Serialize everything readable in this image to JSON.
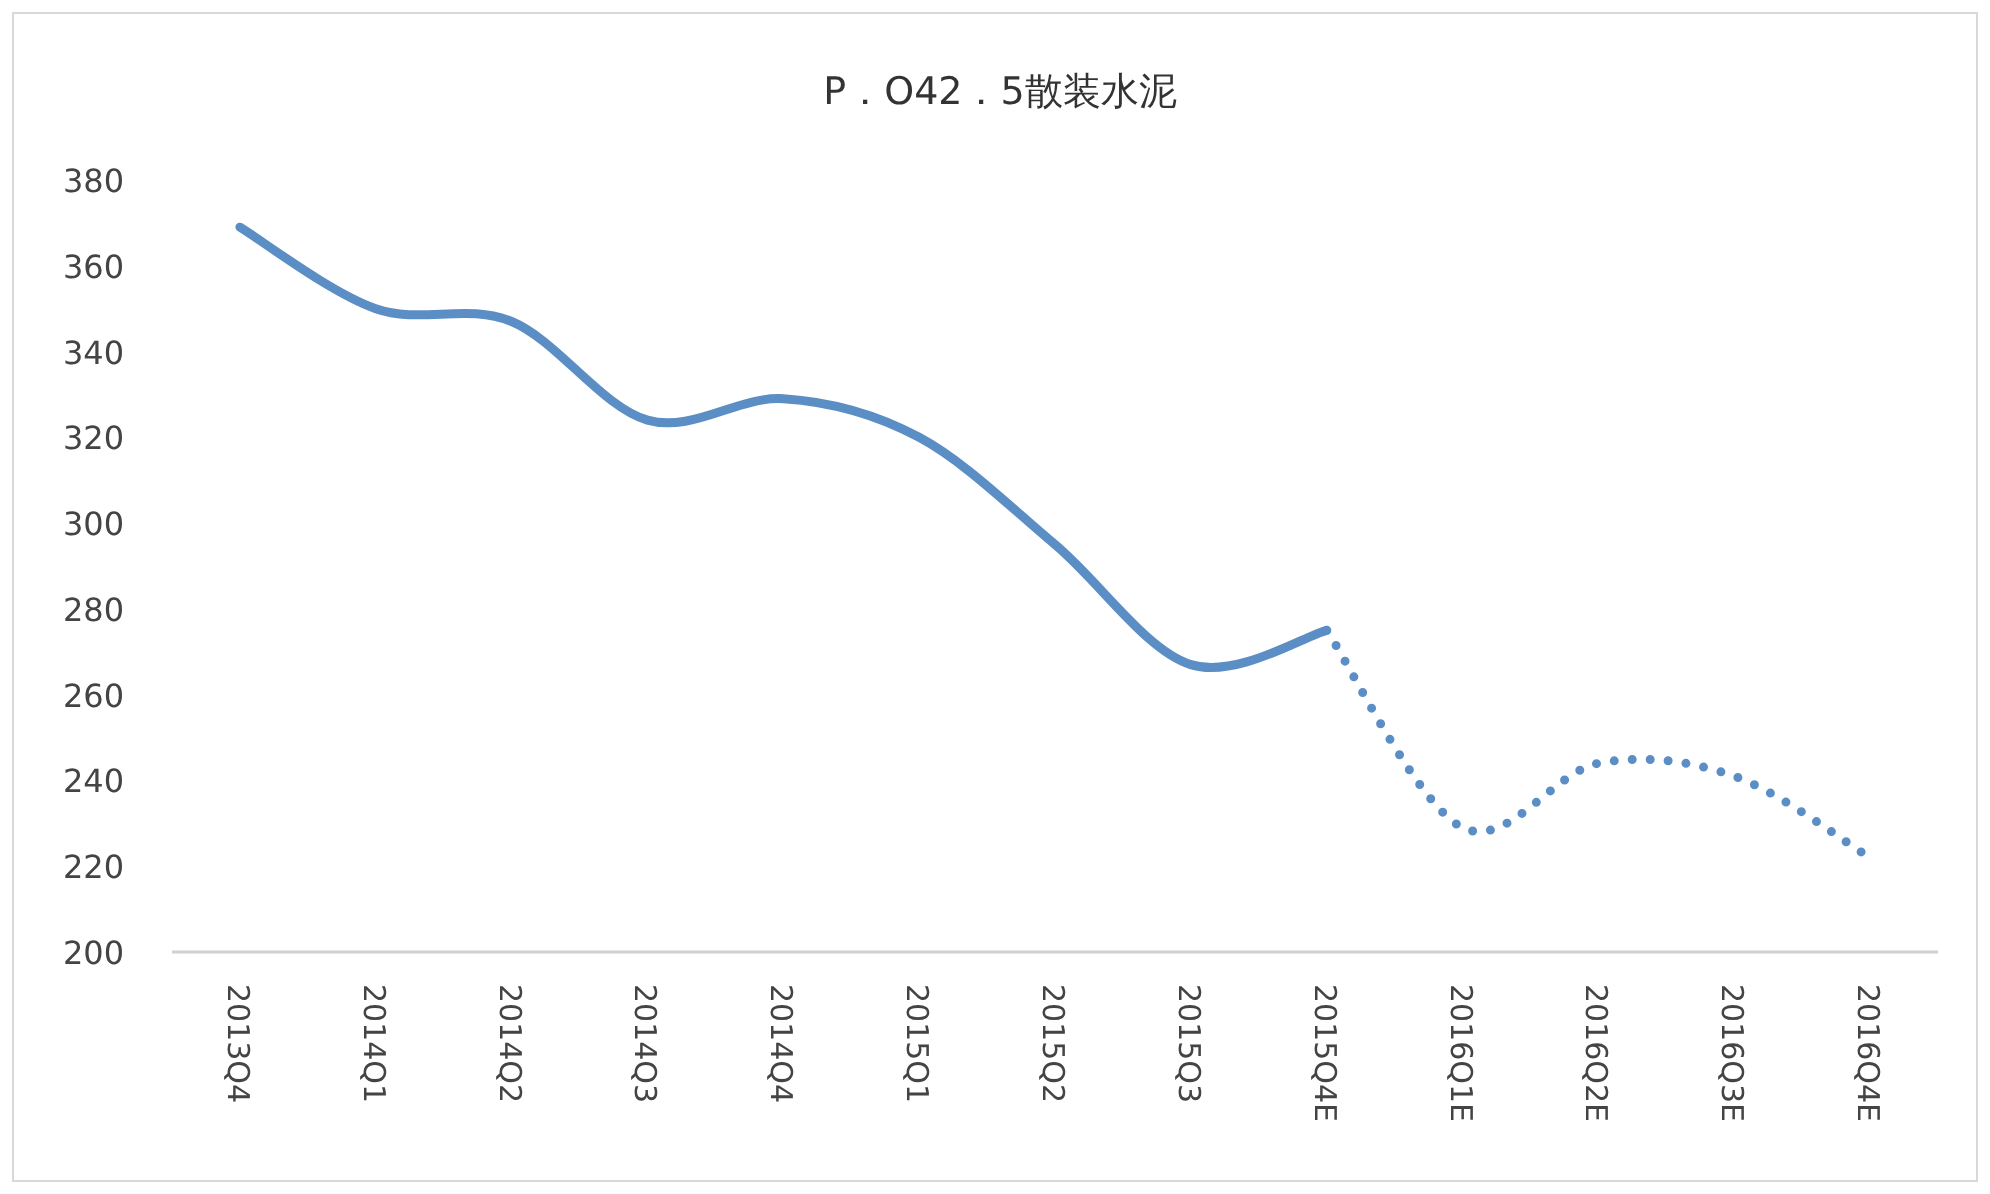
{
  "chart_data": {
    "type": "line",
    "title": "P．O42．5散装水泥",
    "categories": [
      "2013Q4",
      "2014Q1",
      "2014Q2",
      "2014Q3",
      "2014Q4",
      "2015Q1",
      "2015Q2",
      "2015Q3",
      "2015Q4E",
      "2016Q1E",
      "2016Q2E",
      "2016Q3E",
      "2016Q4E"
    ],
    "series": [
      {
        "color": "#5b8ec4",
        "line_style": "solid",
        "values": [
          369,
          350,
          347,
          324,
          329,
          320,
          295,
          267,
          275,
          null,
          null,
          null,
          null
        ]
      },
      {
        "color": "#5b8ec4",
        "line_style": "dotted",
        "values": [
          null,
          null,
          null,
          null,
          null,
          null,
          null,
          null,
          275,
          229,
          244,
          241,
          222
        ]
      }
    ],
    "ylim": [
      200,
      380
    ],
    "yticks": [
      200,
      220,
      240,
      260,
      280,
      300,
      320,
      340,
      360,
      380
    ],
    "grid": false
  }
}
